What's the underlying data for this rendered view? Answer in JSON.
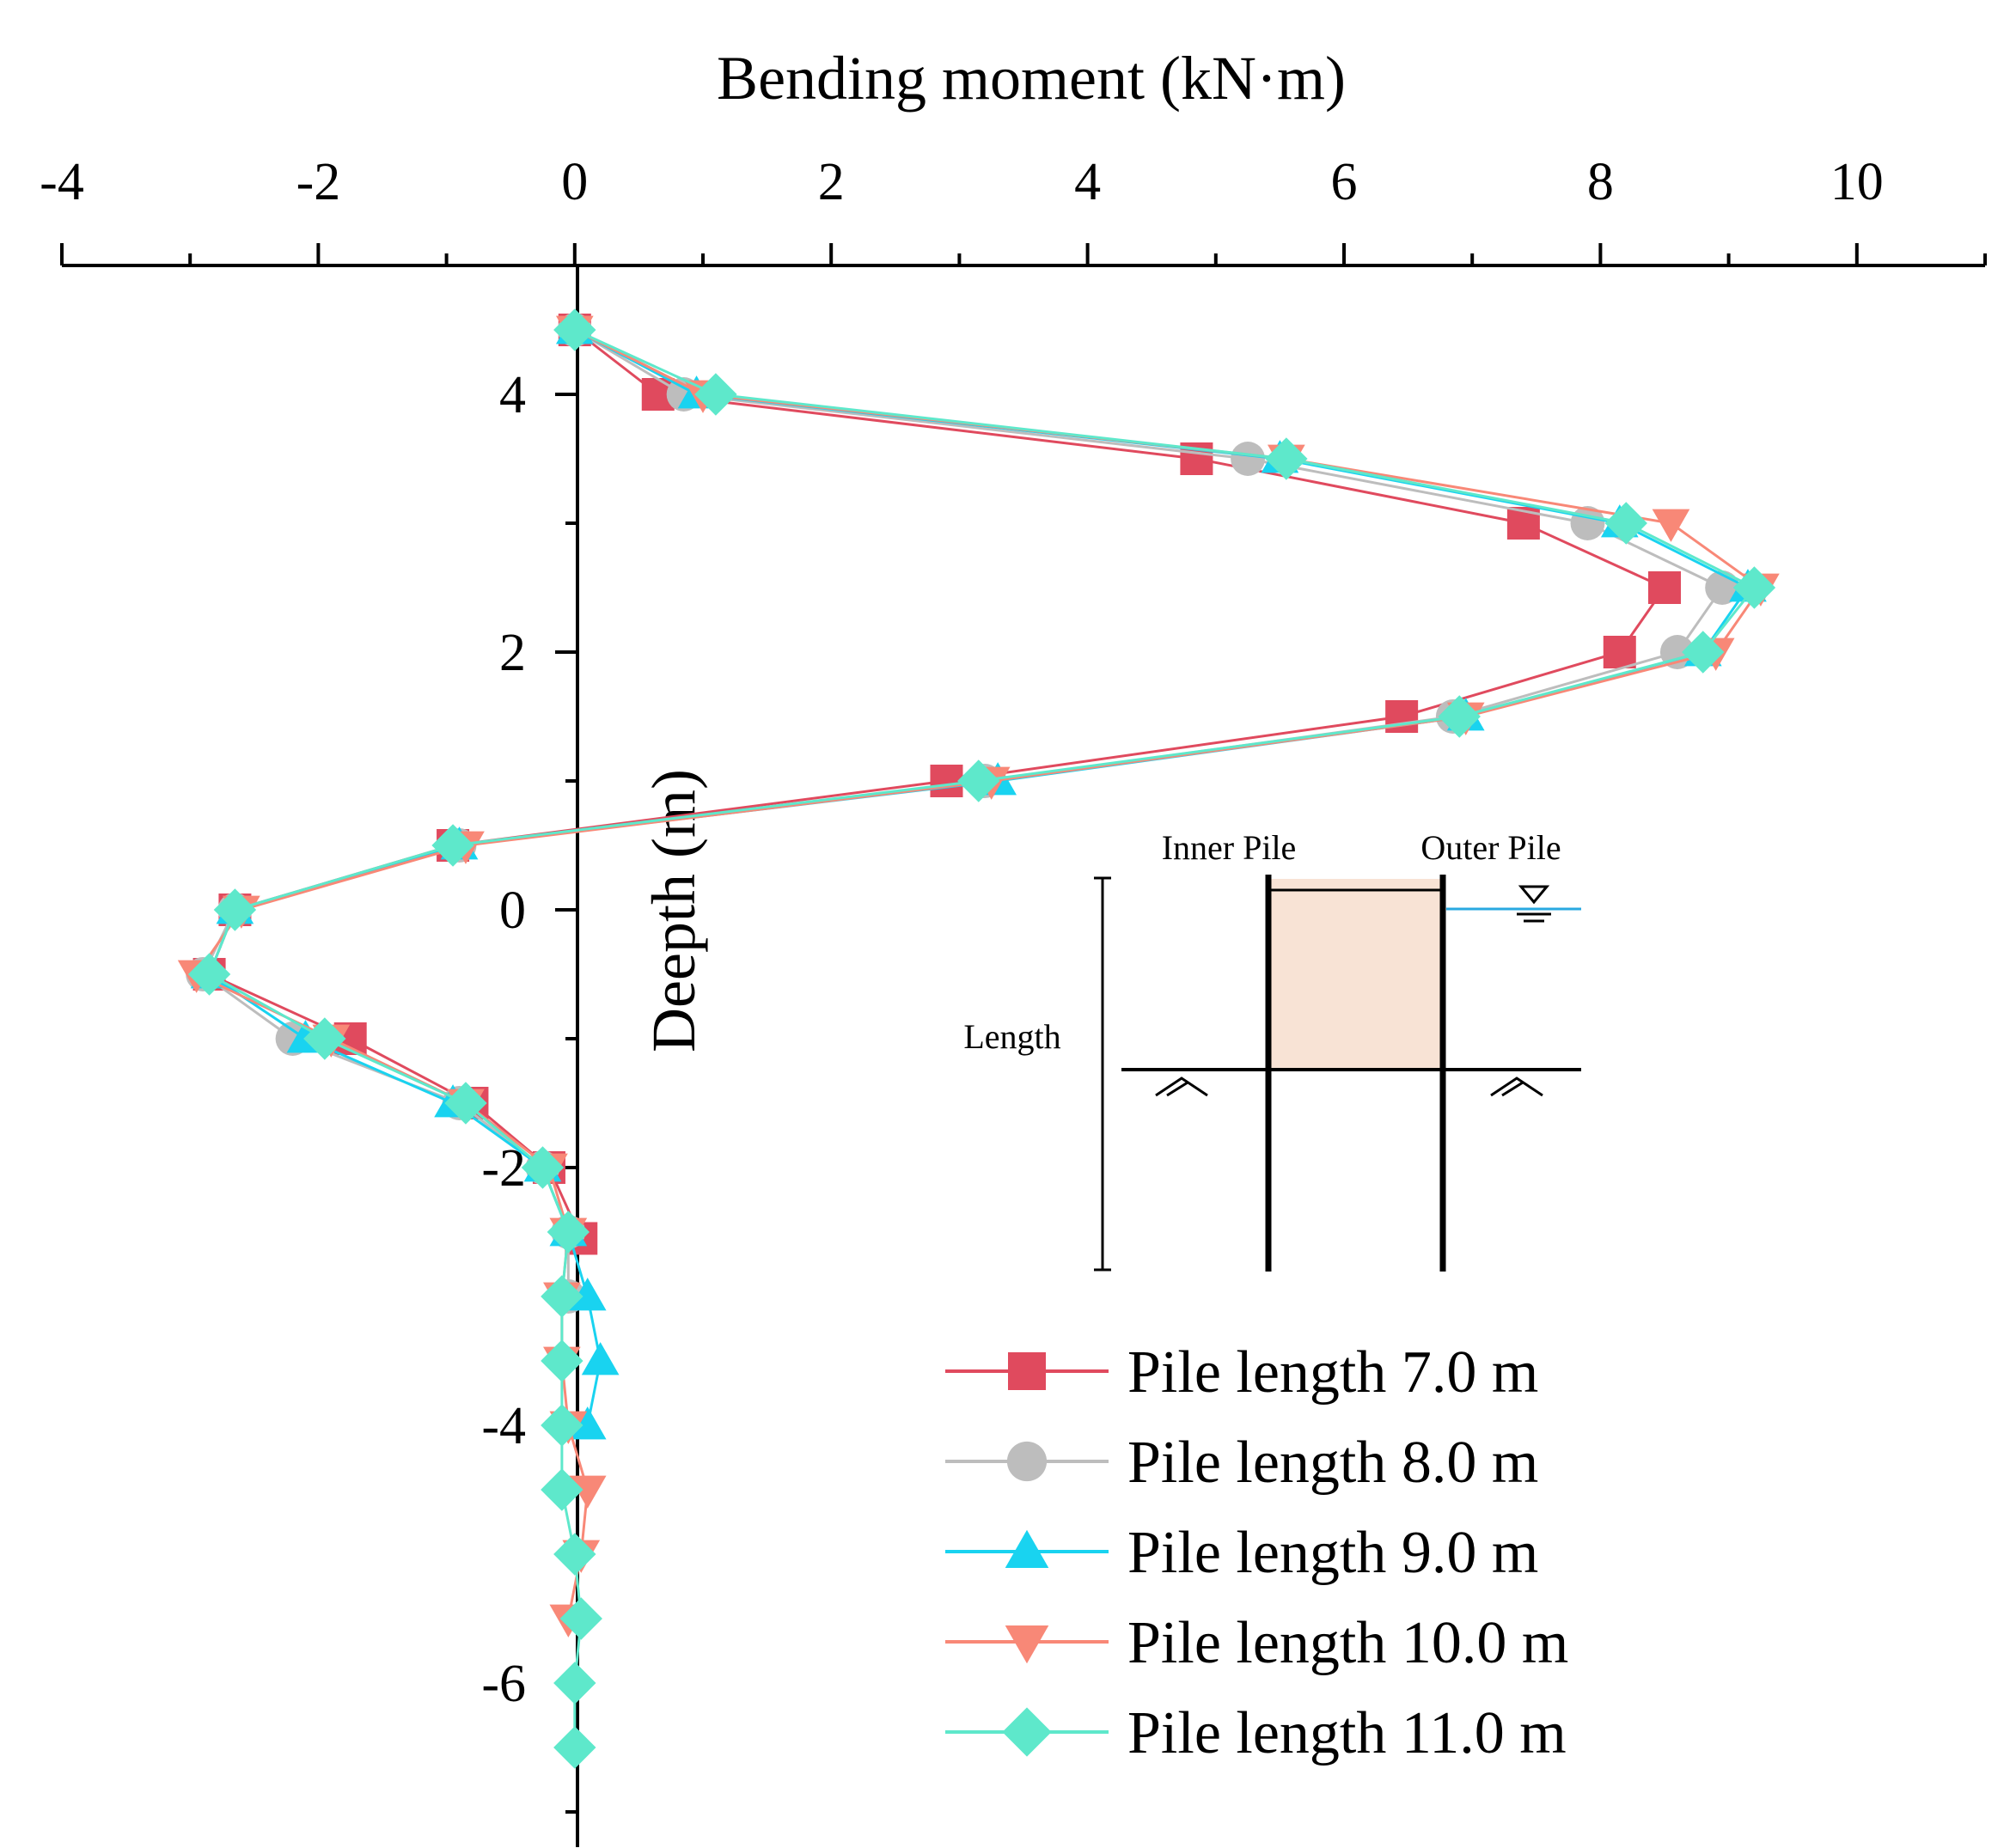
{
  "chart_data": {
    "type": "line",
    "title": "",
    "xlabel": "Bending moment (kN·m)",
    "ylabel": "Deepth (m)",
    "xlim": [
      -4,
      11
    ],
    "ylim": [
      -7,
      5
    ],
    "xticks": [
      -4,
      -2,
      0,
      2,
      4,
      6,
      8,
      10
    ],
    "xtick_labels": [
      "-4",
      "-2",
      "0",
      "2",
      "4",
      "6",
      "8",
      "10"
    ],
    "yticks": [
      4,
      2,
      0,
      -2,
      -4,
      -6
    ],
    "ytick_labels": [
      "4",
      "2",
      "0",
      "-2",
      "-4",
      "-6"
    ],
    "x_axis_position": "top",
    "legend_position": "bottom-right",
    "grid": false,
    "series": [
      {
        "name": "Pile length 7.0 m",
        "color": "#e04a5e",
        "marker": "square",
        "points": [
          {
            "x": 0,
            "y": 4.5
          },
          {
            "x": 0.65,
            "y": 4.0
          },
          {
            "x": 4.85,
            "y": 3.5
          },
          {
            "x": 7.4,
            "y": 3.0
          },
          {
            "x": 8.5,
            "y": 2.5
          },
          {
            "x": 8.15,
            "y": 2.0
          },
          {
            "x": 6.45,
            "y": 1.5
          },
          {
            "x": 2.9,
            "y": 1.0
          },
          {
            "x": -0.95,
            "y": 0.5
          },
          {
            "x": -2.65,
            "y": 0.0
          },
          {
            "x": -2.85,
            "y": -0.5
          },
          {
            "x": -1.75,
            "y": -1.0
          },
          {
            "x": -0.8,
            "y": -1.5
          },
          {
            "x": -0.2,
            "y": -2.0
          },
          {
            "x": 0.05,
            "y": -2.55
          }
        ]
      },
      {
        "name": "Pile length 8.0 m",
        "color": "#bdbdbd",
        "marker": "circle",
        "points": [
          {
            "x": 0,
            "y": 4.5
          },
          {
            "x": 0.85,
            "y": 4.0
          },
          {
            "x": 5.25,
            "y": 3.5
          },
          {
            "x": 7.9,
            "y": 3.0
          },
          {
            "x": 8.95,
            "y": 2.5
          },
          {
            "x": 8.6,
            "y": 2.0
          },
          {
            "x": 6.85,
            "y": 1.5
          },
          {
            "x": 3.2,
            "y": 1.0
          },
          {
            "x": -0.9,
            "y": 0.5
          },
          {
            "x": -2.65,
            "y": 0.0
          },
          {
            "x": -2.9,
            "y": -0.5
          },
          {
            "x": -2.2,
            "y": -1.0
          },
          {
            "x": -0.9,
            "y": -1.5
          },
          {
            "x": -0.25,
            "y": -2.0
          },
          {
            "x": -0.05,
            "y": -2.5
          },
          {
            "x": -0.05,
            "y": -3.0
          }
        ]
      },
      {
        "name": "Pile length 9.0 m",
        "color": "#19d3f0",
        "marker": "triangle-up",
        "points": [
          {
            "x": 0,
            "y": 4.5
          },
          {
            "x": 0.95,
            "y": 4.0
          },
          {
            "x": 5.5,
            "y": 3.5
          },
          {
            "x": 8.15,
            "y": 3.0
          },
          {
            "x": 9.15,
            "y": 2.5
          },
          {
            "x": 8.8,
            "y": 2.0
          },
          {
            "x": 6.95,
            "y": 1.5
          },
          {
            "x": 3.3,
            "y": 1.0
          },
          {
            "x": -0.9,
            "y": 0.5
          },
          {
            "x": -2.65,
            "y": 0.0
          },
          {
            "x": -2.85,
            "y": -0.5
          },
          {
            "x": -2.1,
            "y": -1.0
          },
          {
            "x": -0.95,
            "y": -1.5
          },
          {
            "x": -0.25,
            "y": -2.0
          },
          {
            "x": -0.05,
            "y": -2.5
          },
          {
            "x": 0.1,
            "y": -3.0
          },
          {
            "x": 0.2,
            "y": -3.5
          },
          {
            "x": 0.1,
            "y": -4.0
          }
        ]
      },
      {
        "name": "Pile length 10.0 m",
        "color": "#f88877",
        "marker": "triangle-down",
        "points": [
          {
            "x": 0,
            "y": 4.5
          },
          {
            "x": 1.0,
            "y": 4.0
          },
          {
            "x": 5.55,
            "y": 3.5
          },
          {
            "x": 8.55,
            "y": 3.0
          },
          {
            "x": 9.25,
            "y": 2.5
          },
          {
            "x": 8.9,
            "y": 2.0
          },
          {
            "x": 6.95,
            "y": 1.5
          },
          {
            "x": 3.25,
            "y": 1.0
          },
          {
            "x": -0.85,
            "y": 0.5
          },
          {
            "x": -2.6,
            "y": 0.0
          },
          {
            "x": -2.95,
            "y": -0.5
          },
          {
            "x": -1.9,
            "y": -1.0
          },
          {
            "x": -0.85,
            "y": -1.5
          },
          {
            "x": -0.2,
            "y": -2.0
          },
          {
            "x": -0.05,
            "y": -2.5
          },
          {
            "x": -0.1,
            "y": -3.0
          },
          {
            "x": -0.1,
            "y": -3.5
          },
          {
            "x": -0.05,
            "y": -4.0
          },
          {
            "x": 0.1,
            "y": -4.5
          },
          {
            "x": 0.05,
            "y": -5.0
          },
          {
            "x": -0.05,
            "y": -5.5
          }
        ]
      },
      {
        "name": "Pile length 11.0 m",
        "color": "#5ee8cb",
        "marker": "diamond",
        "points": [
          {
            "x": 0,
            "y": 4.5
          },
          {
            "x": 1.1,
            "y": 4.0
          },
          {
            "x": 5.55,
            "y": 3.5
          },
          {
            "x": 8.2,
            "y": 3.0
          },
          {
            "x": 9.2,
            "y": 2.5
          },
          {
            "x": 8.8,
            "y": 2.0
          },
          {
            "x": 6.9,
            "y": 1.5
          },
          {
            "x": 3.15,
            "y": 1.0
          },
          {
            "x": -0.95,
            "y": 0.5
          },
          {
            "x": -2.65,
            "y": 0.0
          },
          {
            "x": -2.85,
            "y": -0.5
          },
          {
            "x": -1.95,
            "y": -1.0
          },
          {
            "x": -0.85,
            "y": -1.5
          },
          {
            "x": -0.25,
            "y": -2.0
          },
          {
            "x": -0.05,
            "y": -2.5
          },
          {
            "x": -0.1,
            "y": -3.0
          },
          {
            "x": -0.1,
            "y": -3.5
          },
          {
            "x": -0.1,
            "y": -4.0
          },
          {
            "x": -0.1,
            "y": -4.5
          },
          {
            "x": 0.0,
            "y": -5.0
          },
          {
            "x": 0.05,
            "y": -5.5
          },
          {
            "x": 0.0,
            "y": -6.0
          },
          {
            "x": 0.0,
            "y": -6.5
          }
        ]
      }
    ]
  },
  "inset": {
    "inner_pile_label": "Inner Pile",
    "outer_pile_label": "Outer Pile",
    "length_label": "Length",
    "fill_color": "#f8e3d5",
    "water_color": "#29a9e0"
  }
}
